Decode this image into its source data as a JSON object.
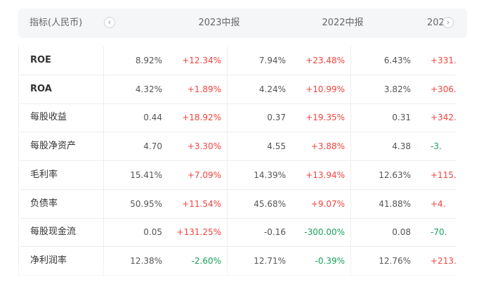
{
  "header": {
    "metric_label": "指标(人民币)",
    "prev_icon": "chevron-left-icon",
    "next_icon": "chevron-right-icon",
    "periods": [
      "2023中报",
      "2022中报",
      "202"
    ]
  },
  "colors": {
    "up": "#f0443e",
    "down": "#18a058",
    "header_bg": "#f5f6f8"
  },
  "rows": [
    {
      "name": "ROE",
      "cells": [
        {
          "value": "8.92%",
          "change": "+12.34%"
        },
        {
          "value": "7.94%",
          "change": "+23.48%"
        },
        {
          "value": "6.43%",
          "change": "+331."
        }
      ]
    },
    {
      "name": "ROA",
      "cells": [
        {
          "value": "4.32%",
          "change": "+1.89%"
        },
        {
          "value": "4.24%",
          "change": "+10.99%"
        },
        {
          "value": "3.82%",
          "change": "+306."
        }
      ]
    },
    {
      "name": "每股收益",
      "cells": [
        {
          "value": "0.44",
          "change": "+18.92%"
        },
        {
          "value": "0.37",
          "change": "+19.35%"
        },
        {
          "value": "0.31",
          "change": "+342."
        }
      ]
    },
    {
      "name": "每股净资产",
      "cells": [
        {
          "value": "4.70",
          "change": "+3.30%"
        },
        {
          "value": "4.55",
          "change": "+3.88%"
        },
        {
          "value": "4.38",
          "change": "-3."
        }
      ]
    },
    {
      "name": "毛利率",
      "cells": [
        {
          "value": "15.41%",
          "change": "+7.09%"
        },
        {
          "value": "14.39%",
          "change": "+13.94%"
        },
        {
          "value": "12.63%",
          "change": "+115."
        }
      ]
    },
    {
      "name": "负债率",
      "cells": [
        {
          "value": "50.95%",
          "change": "+11.54%"
        },
        {
          "value": "45.68%",
          "change": "+9.07%"
        },
        {
          "value": "41.88%",
          "change": "+4."
        }
      ]
    },
    {
      "name": "每股现金流",
      "cells": [
        {
          "value": "0.05",
          "change": "+131.25%"
        },
        {
          "value": "-0.16",
          "change": "-300.00%"
        },
        {
          "value": "0.08",
          "change": "-70."
        }
      ]
    },
    {
      "name": "净利润率",
      "cells": [
        {
          "value": "12.38%",
          "change": "-2.60%"
        },
        {
          "value": "12.71%",
          "change": "-0.39%"
        },
        {
          "value": "12.76%",
          "change": "+213."
        }
      ]
    }
  ]
}
